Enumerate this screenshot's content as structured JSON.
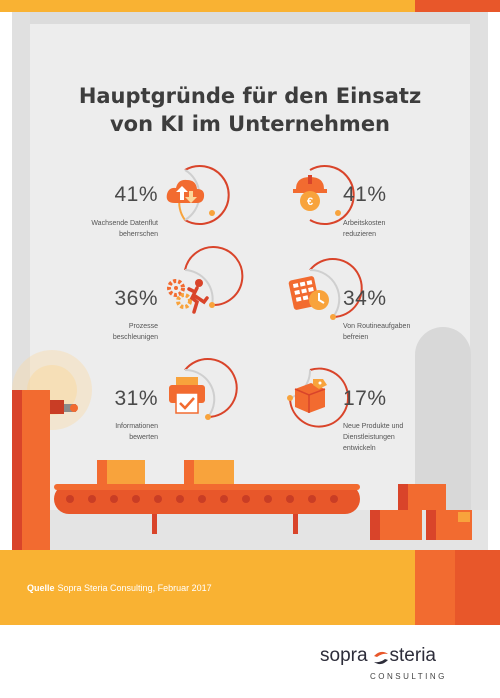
{
  "title": {
    "line1": "Hauptgründe für den Einsatz",
    "line2": "von KI im Unternehmen"
  },
  "stats": [
    {
      "percent": "41%",
      "label_line1": "Wachsende Datenflut",
      "label_line2": "beherrschen",
      "icon": "cloud-upload-download-icon"
    },
    {
      "percent": "41%",
      "label_line1": "Arbeitskosten",
      "label_line2": "reduzieren",
      "icon": "euro-worker-helmet-icon"
    },
    {
      "percent": "36%",
      "label_line1": "Prozesse",
      "label_line2": "beschleunigen",
      "icon": "gears-runner-icon"
    },
    {
      "percent": "34%",
      "label_line1": "Von Routineaufgaben",
      "label_line2": "befreien",
      "icon": "calculator-clock-icon"
    },
    {
      "percent": "31%",
      "label_line1": "Informationen",
      "label_line2": "bewerten",
      "icon": "printer-check-icon"
    },
    {
      "percent": "17%",
      "label_line1": "Neue Produkte und",
      "label_line2": "Dienstleistungen",
      "label_line3": "entwickeln",
      "icon": "package-tag-icon"
    }
  ],
  "source": {
    "key": "Quelle",
    "text": "Sopra Steria Consulting, Februar 2017"
  },
  "logo": {
    "word1": "sopra",
    "word2": "steria",
    "sub": "CONSULTING"
  },
  "colors": {
    "orange": "#f26b30",
    "orange_light": "#f8a33c",
    "yellow": "#f9b233",
    "red_dark": "#d9442a",
    "bg_gray": "#ececec",
    "text_dark": "#3d3d3d"
  }
}
